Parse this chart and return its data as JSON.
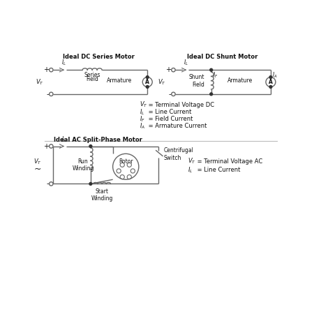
{
  "title_series": "Ideal DC Series Motor",
  "title_shunt": "Ideal DC Shunt Motor",
  "title_ac": "Ideal AC Split-Phase Motor",
  "line_color": "#666666",
  "text_color": "#111111",
  "bg_color": "#ffffff"
}
